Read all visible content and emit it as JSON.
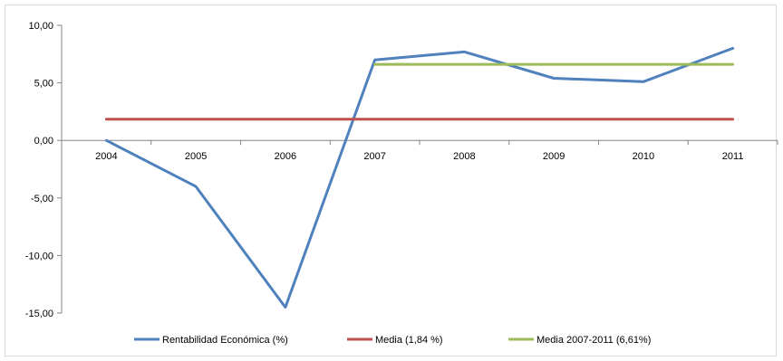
{
  "chart_data": {
    "type": "line",
    "categories": [
      "2004",
      "2005",
      "2006",
      "2007",
      "2008",
      "2009",
      "2010",
      "2011"
    ],
    "ylim": [
      -15,
      10
    ],
    "yticks": [
      "10,00",
      "5,00",
      "0,00",
      "-5,00",
      "-10,00",
      "-15,00"
    ],
    "ytick_values": [
      10,
      5,
      0,
      -5,
      -10,
      -15
    ],
    "grid": false,
    "legend_position": "bottom",
    "series": [
      {
        "name": "Rentabilidad Económica (%)",
        "color": "#4f81bd",
        "values": [
          0.0,
          -4.0,
          -14.5,
          7.0,
          7.7,
          5.4,
          5.1,
          8.0
        ]
      },
      {
        "name": "Media (1,84 %)",
        "color": "#c0504d",
        "values": [
          1.84,
          1.84,
          1.84,
          1.84,
          1.84,
          1.84,
          1.84,
          1.84
        ]
      },
      {
        "name": "Media 2007-2011 (6,61%)",
        "color": "#9bbb59",
        "values": [
          null,
          null,
          null,
          6.61,
          6.61,
          6.61,
          6.61,
          6.61
        ]
      }
    ]
  }
}
